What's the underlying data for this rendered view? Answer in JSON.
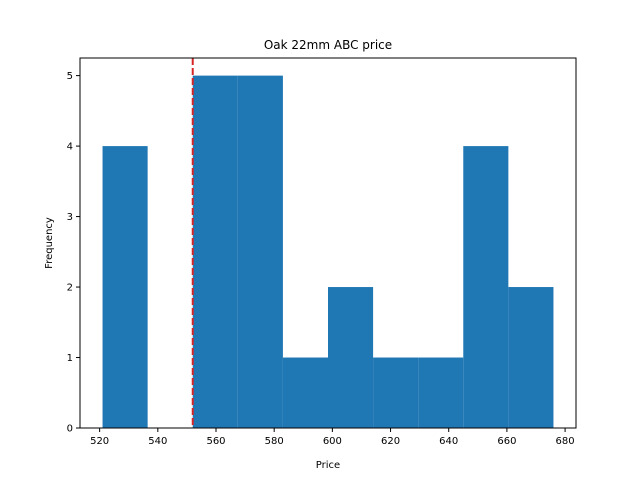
{
  "chart_data": {
    "type": "bar",
    "title": "Oak 22mm ABC price",
    "xlabel": "Price",
    "ylabel": "Frequency",
    "bin_edges": [
      521.0,
      536.5,
      552.0,
      567.5,
      583.0,
      598.5,
      614.0,
      629.5,
      645.0,
      660.5,
      676.0
    ],
    "values": [
      4,
      0,
      5,
      5,
      1,
      2,
      1,
      1,
      4,
      2
    ],
    "xlim": [
      513.25,
      683.75
    ],
    "ylim": [
      0,
      5.25
    ],
    "x_ticks": [
      520,
      540,
      560,
      580,
      600,
      620,
      640,
      660,
      680
    ],
    "y_ticks": [
      0,
      1,
      2,
      3,
      4,
      5
    ],
    "reference_line": {
      "x": 552,
      "style": "dashed",
      "color": "#d62728"
    },
    "bar_color": "#1f77b4",
    "grid": false,
    "legend": "none"
  }
}
